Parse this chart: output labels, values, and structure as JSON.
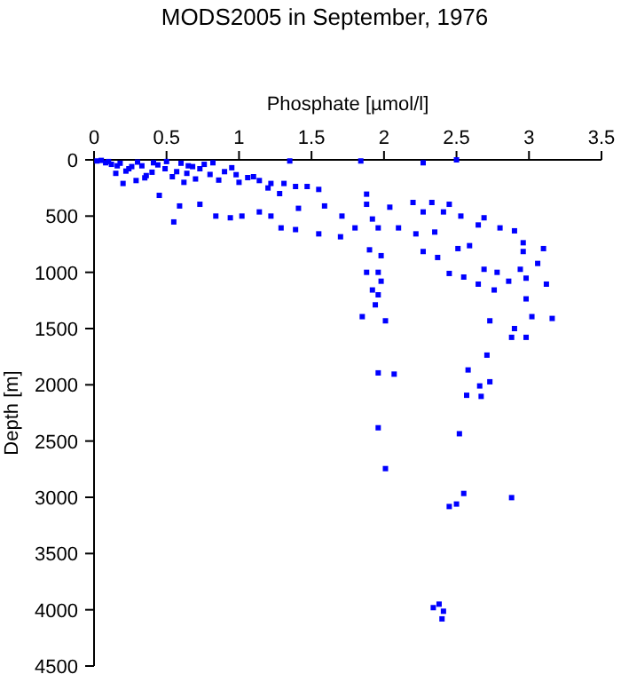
{
  "chart_data": {
    "type": "scatter",
    "title": "MODS2005 in September, 1976",
    "xlabel": "Phosphate [µmol/l]",
    "ylabel": "Depth [m]",
    "marker": "square",
    "grid": false,
    "xlim": [
      0,
      3.5
    ],
    "xticks": [
      0,
      0.5,
      1,
      1.5,
      2,
      2.5,
      3,
      3.5
    ],
    "ylim": [
      4500,
      0
    ],
    "yticks": [
      0,
      500,
      1000,
      1500,
      2000,
      2500,
      3000,
      3500,
      4000,
      4500
    ],
    "series": [
      {
        "color": "#0000ff",
        "x": [
          0.02,
          0.08,
          0.16,
          0.24,
          0.33,
          0.41,
          0.49,
          0.57,
          0.65,
          0.73,
          0.82,
          0.9,
          0.98,
          1.06,
          1.14,
          1.22,
          1.31,
          1.39,
          1.47,
          1.55,
          1.35,
          1.84,
          2.27,
          2.5,
          0.2,
          0.29,
          0.45,
          0.55,
          0.59,
          0.73,
          0.84,
          0.94,
          1.02,
          1.14,
          1.22,
          1.29,
          1.39,
          1.41,
          1.55,
          1.59,
          1.71,
          1.7,
          1.8,
          1.88,
          1.88,
          1.92,
          1.96,
          2.04,
          2.1,
          2.2,
          2.22,
          2.27,
          2.33,
          2.35,
          2.41,
          2.45,
          2.53,
          2.65,
          2.69,
          2.8,
          2.9,
          2.96,
          2.96,
          3.1,
          3.06,
          3.12,
          3.16,
          3.02,
          2.98,
          2.98,
          2.94,
          2.86,
          2.78,
          2.76,
          2.69,
          2.65,
          2.73,
          2.88,
          2.98,
          2.9,
          2.45,
          2.55,
          2.37,
          2.27,
          2.51,
          2.59,
          1.9,
          1.98,
          1.88,
          1.96,
          1.98,
          1.92,
          1.96,
          1.94,
          1.85,
          2.01,
          1.96,
          2.07,
          2.58,
          2.71,
          2.66,
          2.73,
          2.57,
          2.67,
          1.96,
          2.52,
          2.01,
          2.55,
          2.5,
          2.45,
          2.88,
          2.34,
          2.38,
          2.41,
          2.4,
          0.05,
          0.1,
          0.12,
          0.18,
          0.22,
          0.26,
          0.3,
          0.36,
          0.4,
          0.44,
          0.5,
          0.54,
          0.6,
          0.64,
          0.68,
          0.7,
          0.76,
          0.8,
          0.86,
          0.95,
          1.0,
          1.1,
          1.2,
          0.15,
          0.35,
          0.62,
          1.28
        ],
        "values": [
          10,
          26,
          53,
          79,
          53,
          26,
          79,
          105,
          53,
          79,
          26,
          105,
          132,
          158,
          184,
          210,
          210,
          237,
          237,
          263,
          10,
          10,
          26,
          0,
          210,
          184,
          316,
          552,
          410,
          395,
          500,
          515,
          500,
          463,
          500,
          605,
          620,
          431,
          658,
          410,
          500,
          684,
          605,
          305,
          395,
          526,
          605,
          421,
          605,
          379,
          658,
          463,
          379,
          642,
          463,
          395,
          500,
          579,
          515,
          605,
          631,
          737,
          815,
          789,
          921,
          1105,
          1410,
          1394,
          1236,
          1052,
          973,
          1079,
          1000,
          1157,
          973,
          1105,
          1431,
          1578,
          1578,
          1500,
          1010,
          1042,
          868,
          815,
          789,
          763,
          800,
          852,
          1000,
          1000,
          1079,
          1157,
          1200,
          1289,
          1394,
          1431,
          1894,
          1905,
          1868,
          1736,
          2010,
          1973,
          2093,
          2103,
          2382,
          2435,
          2745,
          2966,
          3060,
          3082,
          3003,
          3981,
          3950,
          4013,
          4081,
          5,
          15,
          40,
          30,
          100,
          60,
          20,
          140,
          110,
          45,
          15,
          150,
          30,
          120,
          60,
          170,
          40,
          130,
          180,
          70,
          200,
          150,
          250,
          120,
          160,
          200,
          300
        ]
      }
    ]
  }
}
